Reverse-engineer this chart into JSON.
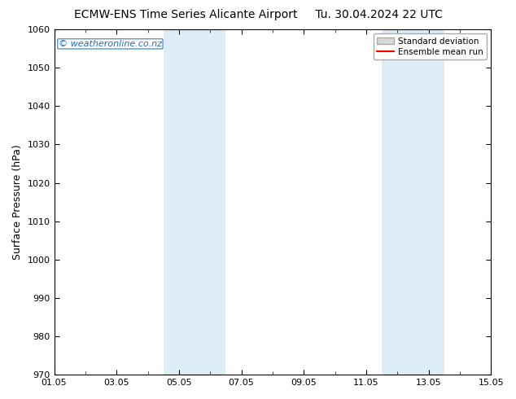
{
  "title_left": "ECMW-ENS Time Series Alicante Airport",
  "title_right": "Tu. 30.04.2024 22 UTC",
  "ylabel": "Surface Pressure (hPa)",
  "ylim": [
    970,
    1060
  ],
  "yticks": [
    970,
    980,
    990,
    1000,
    1010,
    1020,
    1030,
    1040,
    1050,
    1060
  ],
  "xtick_labels": [
    "01.05",
    "03.05",
    "05.05",
    "07.05",
    "09.05",
    "11.05",
    "13.05",
    "15.05"
  ],
  "xtick_positions": [
    0,
    2,
    4,
    6,
    8,
    10,
    12,
    14
  ],
  "shaded_regions": [
    {
      "xmin": 3.5,
      "xmax": 5.5,
      "color": "#ddeef8"
    },
    {
      "xmin": 10.5,
      "xmax": 12.5,
      "color": "#ddeef8"
    }
  ],
  "watermark_text": "© weatheronline.co.nz",
  "watermark_color": "#1a6bcc",
  "background_color": "#ffffff",
  "legend_std_dev_label": "Standard deviation",
  "legend_mean_label": "Ensemble mean run",
  "legend_mean_color": "#ff0000",
  "legend_std_facecolor": "#d8d8d8",
  "legend_std_edgecolor": "#aaaaaa",
  "title_fontsize": 10,
  "axis_label_fontsize": 9,
  "tick_fontsize": 8,
  "x_num_days": 14,
  "minor_xtick_positions": [
    1,
    3,
    5,
    7,
    9,
    11,
    13
  ],
  "spine_color": "#000000"
}
